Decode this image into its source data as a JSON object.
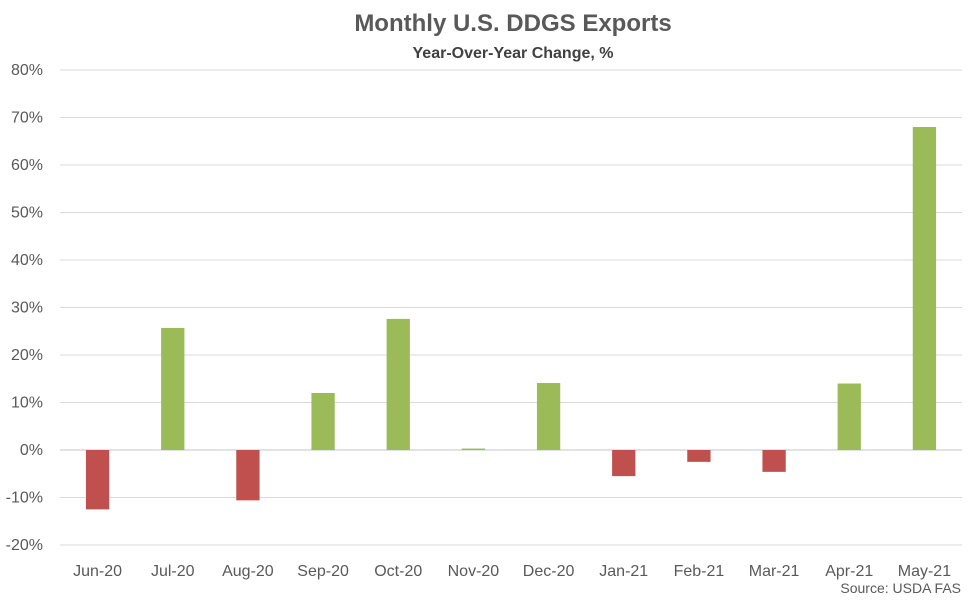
{
  "chart_data": {
    "type": "bar",
    "title": "Monthly U.S. DDGS Exports",
    "subtitle": "Year-Over-Year Change, %",
    "categories": [
      "Jun-20",
      "Jul-20",
      "Aug-20",
      "Sep-20",
      "Oct-20",
      "Nov-20",
      "Dec-20",
      "Jan-21",
      "Feb-21",
      "Mar-21",
      "Apr-21",
      "May-21"
    ],
    "values": [
      -12.5,
      25.7,
      -10.6,
      12.0,
      27.6,
      0.3,
      14.1,
      -5.5,
      -2.5,
      -4.6,
      14.0,
      68.0
    ],
    "ylim": [
      -20,
      80
    ],
    "yticks": [
      80,
      70,
      60,
      50,
      40,
      30,
      20,
      10,
      0,
      -10,
      -20
    ],
    "ytick_labels": [
      "80%",
      "70%",
      "60%",
      "50%",
      "40%",
      "30%",
      "20%",
      "10%",
      "0%",
      "-10%",
      "-20%"
    ],
    "grid": true,
    "colors": {
      "positive": "#9BBB59",
      "negative": "#C0504D",
      "gridline": "#D9D9D9",
      "text": "#595959"
    },
    "source": "Source: USDA FAS"
  }
}
